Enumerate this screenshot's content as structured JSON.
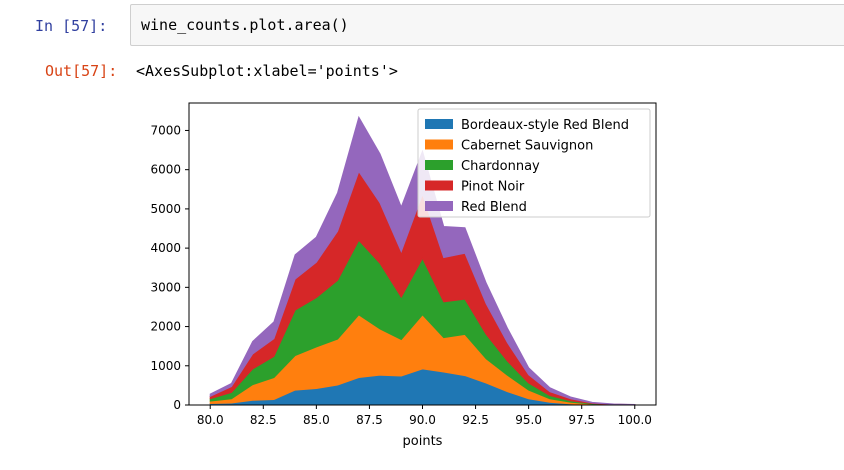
{
  "cell": {
    "in_prompt": "In  [57]:",
    "code": "wine_counts.plot.area()",
    "out_prompt": "Out[57]:",
    "output_text": "<AxesSubplot:xlabel='points'>"
  },
  "chart_data": {
    "type": "area",
    "stacked": true,
    "xlabel": "points",
    "ylabel": "",
    "xlim": [
      79.0,
      101.0
    ],
    "ylim": [
      0,
      7700
    ],
    "x": [
      80,
      81,
      82,
      83,
      84,
      85,
      86,
      87,
      88,
      89,
      90,
      91,
      92,
      93,
      94,
      95,
      96,
      97,
      98,
      99,
      100
    ],
    "xticks": [
      "80.0",
      "82.5",
      "85.0",
      "87.5",
      "90.0",
      "92.5",
      "95.0",
      "97.5",
      "100.0"
    ],
    "xtick_values": [
      80,
      82.5,
      85,
      87.5,
      90,
      92.5,
      95,
      97.5,
      100
    ],
    "yticks": [
      0,
      1000,
      2000,
      3000,
      4000,
      5000,
      6000,
      7000
    ],
    "grid": false,
    "legend_position": "upper right",
    "series": [
      {
        "name": "Bordeaux-style Red Blend",
        "color": "#1f77b4",
        "values": [
          40,
          50,
          120,
          140,
          380,
          420,
          510,
          700,
          760,
          740,
          920,
          840,
          750,
          560,
          340,
          160,
          70,
          30,
          10,
          4,
          2
        ]
      },
      {
        "name": "Cabernet Sauvignon",
        "color": "#ff7f0e",
        "values": [
          60,
          110,
          400,
          560,
          880,
          1060,
          1170,
          1600,
          1180,
          930,
          1380,
          880,
          1050,
          620,
          420,
          220,
          90,
          40,
          15,
          5,
          3
        ]
      },
      {
        "name": "Chardonnay",
        "color": "#2ca02c",
        "values": [
          60,
          160,
          400,
          540,
          1160,
          1260,
          1500,
          1900,
          1670,
          1080,
          1440,
          910,
          900,
          620,
          360,
          180,
          80,
          35,
          12,
          5,
          3
        ]
      },
      {
        "name": "Pinot Noir",
        "color": "#d62728",
        "values": [
          60,
          150,
          380,
          450,
          790,
          900,
          1250,
          1750,
          1540,
          1160,
          1630,
          1130,
          1170,
          780,
          470,
          210,
          100,
          50,
          15,
          6,
          2
        ]
      },
      {
        "name": "Red Blend",
        "color": "#9467bd",
        "values": [
          60,
          80,
          320,
          430,
          620,
          640,
          980,
          1390,
          1250,
          1140,
          1100,
          790,
          650,
          530,
          370,
          180,
          100,
          45,
          15,
          6,
          2
        ]
      }
    ]
  }
}
